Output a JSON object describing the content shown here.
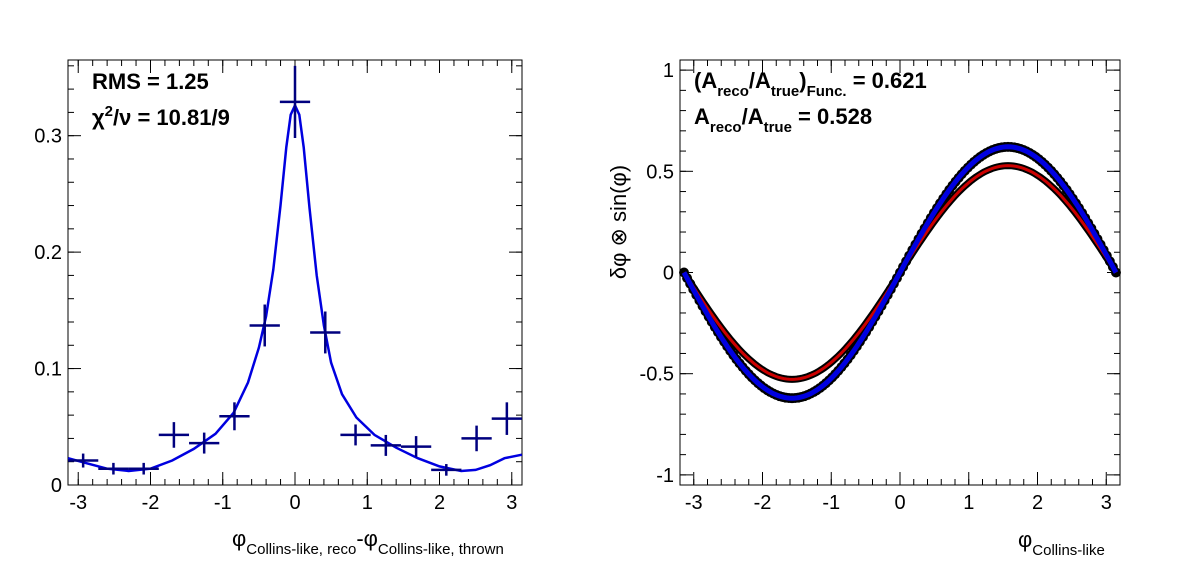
{
  "chart_data": [
    {
      "type": "scatter",
      "xlim": [
        -3.14159,
        3.14159
      ],
      "ylim": [
        0,
        0.365
      ],
      "x_ticks": [
        -3,
        -2,
        -1,
        0,
        1,
        2,
        3
      ],
      "y_ticks": [
        0,
        0.1,
        0.2,
        0.3
      ],
      "x_tick_labels": [
        "-3",
        "-2",
        "-1",
        "0",
        "1",
        "2",
        "3"
      ],
      "y_tick_labels": [
        "0",
        "0.1",
        "0.2",
        "0.3"
      ],
      "xlabel": {
        "part1": "φ",
        "sub1": "Collins-like, reco",
        "part2": "-φ",
        "sub2": "Collins-like, thrown"
      },
      "annotations": {
        "rms": "RMS = 1.25",
        "chi_prefix": "χ",
        "chi_sup": "2",
        "chi_rest": "/ν = 10.81/9"
      },
      "series": [
        {
          "style": "points",
          "color": "#00007f",
          "points": [
            {
              "x": -2.932,
              "y": 0.021,
              "ey": 0.006
            },
            {
              "x": -2.513,
              "y": 0.014,
              "ey": 0.005
            },
            {
              "x": -2.094,
              "y": 0.014,
              "ey": 0.005
            },
            {
              "x": -1.676,
              "y": 0.043,
              "ey": 0.011
            },
            {
              "x": -1.257,
              "y": 0.036,
              "ey": 0.009
            },
            {
              "x": -0.838,
              "y": 0.059,
              "ey": 0.012
            },
            {
              "x": -0.419,
              "y": 0.137,
              "ey": 0.018
            },
            {
              "x": 0.0,
              "y": 0.329,
              "ey": 0.031
            },
            {
              "x": 0.419,
              "y": 0.131,
              "ey": 0.018
            },
            {
              "x": 0.838,
              "y": 0.043,
              "ey": 0.009
            },
            {
              "x": 1.257,
              "y": 0.034,
              "ey": 0.009
            },
            {
              "x": 1.676,
              "y": 0.033,
              "ey": 0.009
            },
            {
              "x": 2.094,
              "y": 0.013,
              "ey": 0.005
            },
            {
              "x": 2.513,
              "y": 0.04,
              "ey": 0.011
            },
            {
              "x": 2.932,
              "y": 0.057,
              "ey": 0.014
            }
          ]
        },
        {
          "style": "line",
          "color": "#0000e0",
          "points": [
            [
              -3.14,
              0.023
            ],
            [
              -2.9,
              0.019
            ],
            [
              -2.6,
              0.014
            ],
            [
              -2.3,
              0.012
            ],
            [
              -2.0,
              0.014
            ],
            [
              -1.7,
              0.021
            ],
            [
              -1.4,
              0.031
            ],
            [
              -1.1,
              0.044
            ],
            [
              -0.85,
              0.062
            ],
            [
              -0.65,
              0.088
            ],
            [
              -0.5,
              0.118
            ],
            [
              -0.4,
              0.145
            ],
            [
              -0.3,
              0.185
            ],
            [
              -0.2,
              0.24
            ],
            [
              -0.12,
              0.29
            ],
            [
              -0.06,
              0.318
            ],
            [
              0.0,
              0.326
            ],
            [
              0.06,
              0.318
            ],
            [
              0.12,
              0.29
            ],
            [
              0.2,
              0.238
            ],
            [
              0.3,
              0.18
            ],
            [
              0.4,
              0.137
            ],
            [
              0.5,
              0.105
            ],
            [
              0.65,
              0.078
            ],
            [
              0.85,
              0.058
            ],
            [
              1.1,
              0.043
            ],
            [
              1.4,
              0.032
            ],
            [
              1.7,
              0.023
            ],
            [
              2.0,
              0.016
            ],
            [
              2.3,
              0.012
            ],
            [
              2.5,
              0.013
            ],
            [
              2.7,
              0.017
            ],
            [
              2.9,
              0.023
            ],
            [
              3.14,
              0.026
            ]
          ]
        }
      ]
    },
    {
      "type": "line",
      "xlim": [
        -3.2,
        3.2
      ],
      "ylim": [
        -1.05,
        1.05
      ],
      "x_ticks": [
        -3,
        -2,
        -1,
        0,
        1,
        2,
        3
      ],
      "y_ticks": [
        -1,
        -0.5,
        0,
        0.5,
        1
      ],
      "x_tick_labels": [
        "-3",
        "-2",
        "-1",
        "0",
        "1",
        "2",
        "3"
      ],
      "y_tick_labels": [
        "-1",
        "-0.5",
        "0",
        "0.5",
        "1"
      ],
      "xlabel": {
        "part1": "φ",
        "sub1": "Collins-like"
      },
      "ylabel": "δφ ⊗ sin(φ)",
      "annotations": {
        "line1_a": "(A",
        "line1_sub_a": "reco",
        "line1_b": "/A",
        "line1_sub_b": "true",
        "line1_c": ")",
        "line1_sub_c": "Func.",
        "line1_d": " = 0.621",
        "line2_a": "A",
        "line2_sub_a": "reco",
        "line2_b": "/A",
        "line2_sub_b": "true",
        "line2_c": " = 0.528"
      },
      "series": [
        {
          "style": "markers",
          "color": "#000000",
          "amplitude": 0.621,
          "x_range": [
            -3.14159,
            3.14159
          ]
        },
        {
          "style": "line",
          "color": "#0000e0",
          "amplitude": 0.621,
          "x_range": [
            -3.14159,
            3.14159
          ]
        },
        {
          "style": "line",
          "color": "#cc0000",
          "amplitude": 0.528,
          "x_range": [
            -3.14159,
            3.14159
          ]
        }
      ]
    }
  ]
}
